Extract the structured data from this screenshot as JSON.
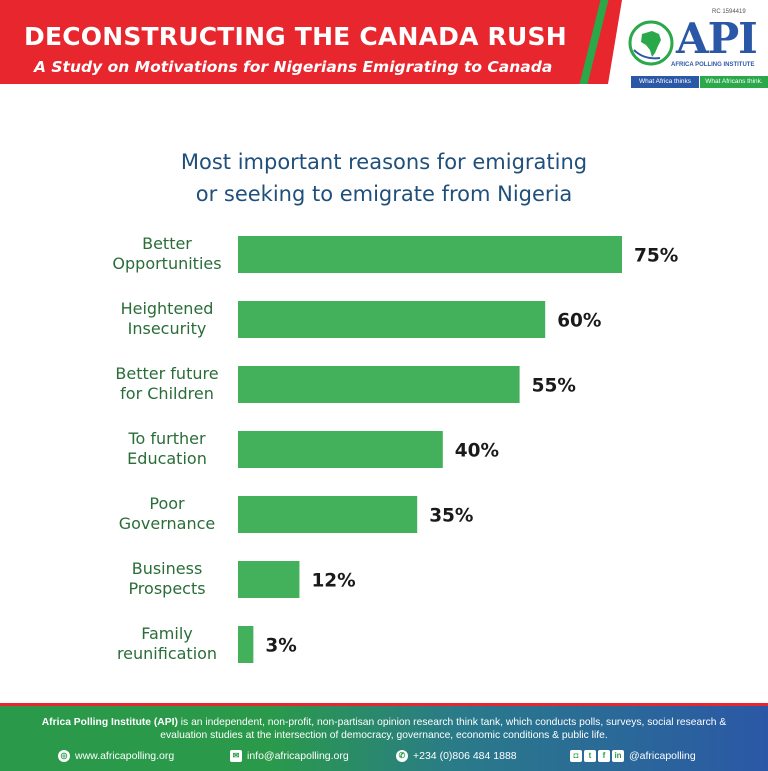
{
  "header": {
    "title": "DECONSTRUCTING THE CANADA RUSH",
    "subtitle": "A Study on Motivations for Nigerians Emigrating to Canada",
    "colors": {
      "red": "#e8262d",
      "green": "#2aa84a",
      "blue": "#2b58a6"
    }
  },
  "logo": {
    "rc_number": "RC 1594419",
    "acronym": "API",
    "name": "AFRICA POLLING INSTITUTE",
    "tagline_left": "What Africa thinks",
    "tagline_right": "What Africans think."
  },
  "chart_data": {
    "type": "bar",
    "orientation": "horizontal",
    "title_line1": "Most important reasons for emigrating",
    "title_line2": "or seeking to emigrate from Nigeria",
    "categories": [
      [
        "Better",
        "Opportunities"
      ],
      [
        "Heightened",
        "Insecurity"
      ],
      [
        "Better future",
        "for Children"
      ],
      [
        "To further",
        "Education"
      ],
      [
        "Poor",
        "Governance"
      ],
      [
        "Business",
        "Prospects"
      ],
      [
        "Family",
        "reunification"
      ]
    ],
    "values": [
      75,
      60,
      55,
      40,
      35,
      12,
      3
    ],
    "value_labels": [
      "75%",
      "60%",
      "55%",
      "40%",
      "35%",
      "12%",
      "3%"
    ],
    "bar_color": "#43b05c",
    "xlim": [
      0,
      75
    ],
    "grid": false,
    "legend": "none"
  },
  "footer": {
    "org_name": "Africa Polling Institute (API)",
    "description": " is an independent, non-profit, non-partisan opinion research think tank, which conducts polls, surveys, social research & evaluation studies at the intersection of democracy, governance, economic conditions & public life.",
    "website": "www.africapolling.org",
    "email": "info@africapolling.org",
    "phone": "+234 (0)806 484 1888",
    "social_handle": "@africapolling",
    "social_icons": [
      "instagram-icon",
      "twitter-icon",
      "facebook-icon",
      "linkedin-icon"
    ]
  }
}
